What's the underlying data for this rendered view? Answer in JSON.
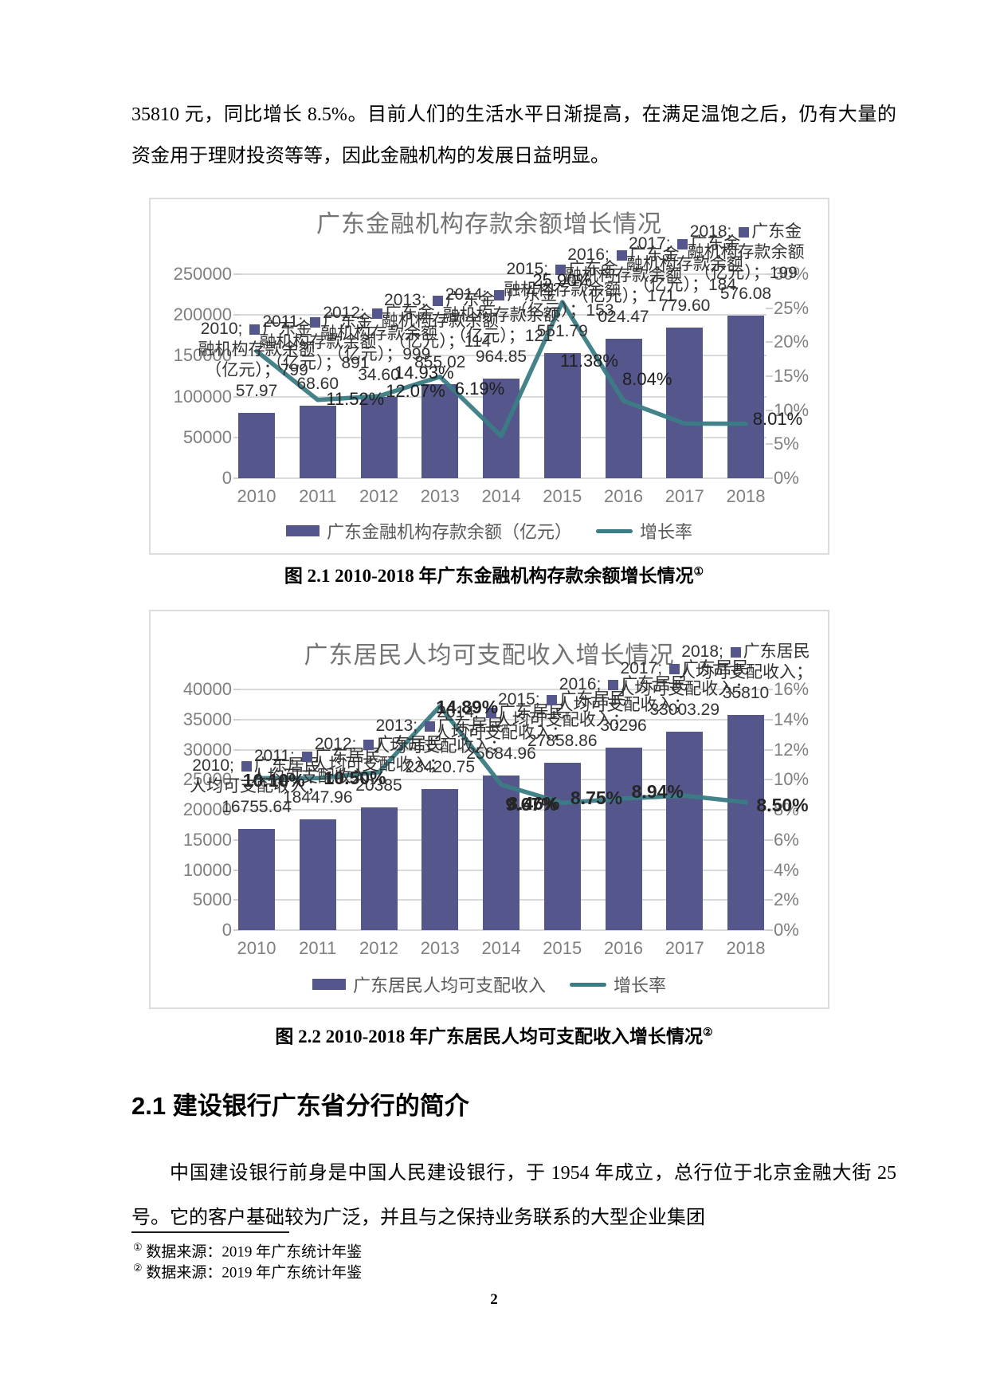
{
  "page": {
    "paragraph_top": "35810 元，同比增长 8.5%。目前人们的生活水平日渐提高，在满足温饱之后，仍有大量的资金用于理财投资等等，因此金融机构的发展日益明显。",
    "captions": [
      {
        "text": "图 2.1 2010-2018 年广东金融机构存款余额增长情况",
        "marker": "①"
      },
      {
        "text": "图 2.2 2010-2018 年广东居民人均可支配收入增长情况",
        "marker": "②"
      }
    ],
    "section_heading": "2.1 建设银行广东省分行的简介",
    "paragraph_body": "中国建设银行前身是中国人民建设银行，于 1954 年成立，总行位于北京金融大街 25 号。它的客户基础较为广泛，并且与之保持业务联系的大型企业集团",
    "footnotes": [
      {
        "marker": "①",
        "text": "数据来源：2019 年广东统计年鉴"
      },
      {
        "marker": "②",
        "text": "数据来源：2019 年广东统计年鉴"
      }
    ],
    "page_number": "2"
  },
  "colors": {
    "bar": "#55568c",
    "line": "#3b7c85",
    "axis_text": "#7f7f7f",
    "chart_title": "#747474",
    "chart_border": "#dcdcdc"
  },
  "chart_data": [
    {
      "id": "deposit-balance",
      "type": "bar+line",
      "title": "广东金融机构存款余额增长情况",
      "categories": [
        "2010",
        "2011",
        "2012",
        "2013",
        "2014",
        "2015",
        "2016",
        "2017",
        "2018"
      ],
      "series": [
        {
          "name": "广东金融机构存款余额（亿元）",
          "type": "bar",
          "values": [
            79957.97,
            89168.6,
            99934.6,
            114855.02,
            121964.85,
            153551.79,
            171024.47,
            184779.6,
            199576.08
          ]
        },
        {
          "name": "增长率",
          "type": "line",
          "axis": "right",
          "values_pct": [
            18.7,
            11.52,
            12.07,
            14.93,
            6.19,
            25.9,
            11.38,
            8.04,
            8.01
          ],
          "first_point_estimated_from_pixels": true,
          "point_labels": [
            null,
            "11.52%",
            "12.07%",
            "14.93%",
            "6.19%",
            "25.90%",
            "11.38%",
            "8.04%",
            "8.01%"
          ]
        }
      ],
      "left_axis": {
        "ticks": [
          "250000",
          "200000",
          "150000",
          "100000",
          "50000",
          "0"
        ],
        "min": 0,
        "max": 250000
      },
      "right_axis": {
        "ticks": [
          "30%",
          "25%",
          "20%",
          "15%",
          "10%",
          "5%",
          "0%"
        ],
        "min": 0,
        "max": 30
      },
      "grid": true,
      "legend_position": "bottom",
      "bar_point_labels": [
        [
          "2010; 广东金",
          "融机构存款余额",
          "（亿元）；799",
          "57.97"
        ],
        [
          "2011; 广东金",
          "融机构存款余额",
          "（亿元）；891",
          "68.60"
        ],
        [
          "2012; 广东金",
          "融机构存款余额",
          "（亿元）；999",
          "34.60"
        ],
        [
          "2013; 广东金",
          "融机构存款余额",
          "（亿元）；114",
          "855.02"
        ],
        [
          "2014; 广东金",
          "融机构存款余额",
          "（亿元）；121",
          "964.85"
        ],
        [
          "2015; 广东金",
          "融机构存款余额",
          "（亿元）；153",
          "551.79"
        ],
        [
          "2016; 广东金",
          "融机构存款余额",
          "（亿元）；171",
          "024.47"
        ],
        [
          "2017; 广东金",
          "融机构存款余额",
          "（亿元）；184",
          "779.60"
        ],
        [
          "2018; 广东金",
          "融机构存款余额",
          "（亿元）；199",
          "576.08"
        ]
      ],
      "legend": [
        {
          "label": "广东金融机构存款余额（亿元）",
          "swatch": "bar"
        },
        {
          "label": "增长率",
          "swatch": "line"
        }
      ]
    },
    {
      "id": "per-capita-income",
      "type": "bar+line",
      "title": "广东居民人均可支配收入增长情况",
      "categories": [
        "2010",
        "2011",
        "2012",
        "2013",
        "2014",
        "2015",
        "2016",
        "2017",
        "2018"
      ],
      "series": [
        {
          "name": "广东居民人均可支配收入",
          "type": "bar",
          "values": [
            16755.64,
            18447.96,
            20385,
            23420.75,
            25684.96,
            27858.86,
            30296,
            33003.29,
            35810
          ]
        },
        {
          "name": "增长率",
          "type": "line",
          "axis": "right",
          "values_pct": [
            10.1,
            10.1,
            10.5,
            14.89,
            9.67,
            8.46,
            8.75,
            8.94,
            8.5
          ],
          "first_point_estimated_from_pixels": true,
          "point_labels": [
            null,
            "10.10%",
            "10.50%",
            "14.89%",
            "9.67%",
            "8.46%",
            "8.75%",
            "8.94%",
            "8.50%"
          ]
        }
      ],
      "left_axis": {
        "ticks": [
          "40000",
          "35000",
          "30000",
          "25000",
          "20000",
          "15000",
          "10000",
          "5000",
          "0"
        ],
        "min": 0,
        "max": 40000
      },
      "right_axis": {
        "ticks": [
          "16%",
          "14%",
          "12%",
          "10%",
          "8%",
          "6%",
          "4%",
          "2%",
          "0%"
        ],
        "min": 0,
        "max": 16
      },
      "grid": true,
      "legend_position": "bottom",
      "bar_point_labels": [
        [
          "2010; 广东居民",
          "人均可支配收入；",
          "16755.64"
        ],
        [
          "2011; 广东居民",
          "人均可支配收入；",
          "18447.96"
        ],
        [
          "2012; 广东居民",
          "人均可支配收入；",
          "20385"
        ],
        [
          "2013; 广东居民",
          "人均可支配收入；",
          "23420.75"
        ],
        [
          "2014; 广东居民",
          "人均可支配收入；",
          "25684.96"
        ],
        [
          "2015; 广东居民",
          "人均可支配收入；",
          "27858.86"
        ],
        [
          "2016; 广东居民",
          "人均可支配收入；",
          "30296"
        ],
        [
          "2017; 广东居民",
          "人均可支配收入；",
          "33003.29"
        ],
        [
          "2018; 广东居民",
          "人均可支配收入；",
          "35810"
        ]
      ],
      "legend": [
        {
          "label": "广东居民人均可支配收入",
          "swatch": "bar"
        },
        {
          "label": "增长率",
          "swatch": "line"
        }
      ]
    }
  ]
}
